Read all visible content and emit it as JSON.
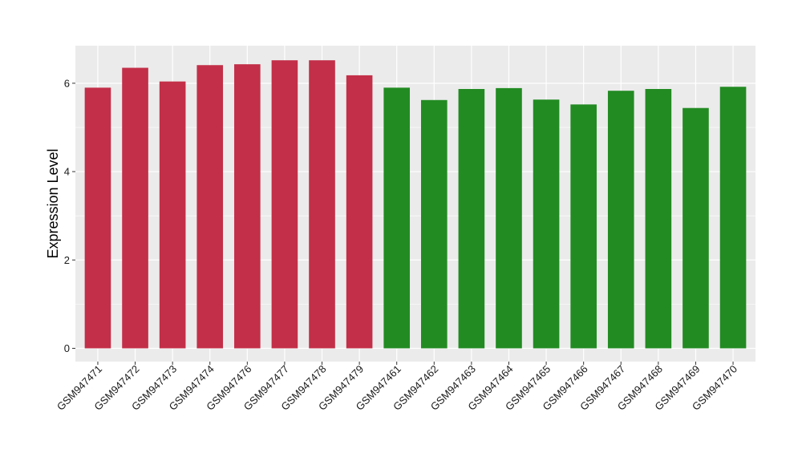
{
  "chart_data": {
    "type": "bar",
    "title": "",
    "xlabel": "",
    "ylabel": "Expression Level",
    "ylim": [
      -0.3,
      6.85
    ],
    "yticks": [
      0,
      2,
      4,
      6
    ],
    "grid": true,
    "legend": "none",
    "categories": [
      "GSM947471",
      "GSM947472",
      "GSM947473",
      "GSM947474",
      "GSM947476",
      "GSM947477",
      "GSM947478",
      "GSM947479",
      "GSM947461",
      "GSM947462",
      "GSM947463",
      "GSM947464",
      "GSM947465",
      "GSM947466",
      "GSM947467",
      "GSM947468",
      "GSM947469",
      "GSM947470"
    ],
    "values": [
      5.9,
      6.35,
      6.04,
      6.41,
      6.43,
      6.52,
      6.52,
      6.18,
      5.9,
      5.62,
      5.87,
      5.89,
      5.63,
      5.52,
      5.83,
      5.87,
      5.44,
      5.92
    ],
    "bar_colors": [
      "#C32F48",
      "#C32F48",
      "#C32F48",
      "#C32F48",
      "#C32F48",
      "#C32F48",
      "#C32F48",
      "#C32F48",
      "#228B22",
      "#228B22",
      "#228B22",
      "#228B22",
      "#228B22",
      "#228B22",
      "#228B22",
      "#228B22",
      "#228B22",
      "#228B22"
    ],
    "panel_background": "#EBEBEB",
    "grid_color": "#FFFFFF"
  }
}
